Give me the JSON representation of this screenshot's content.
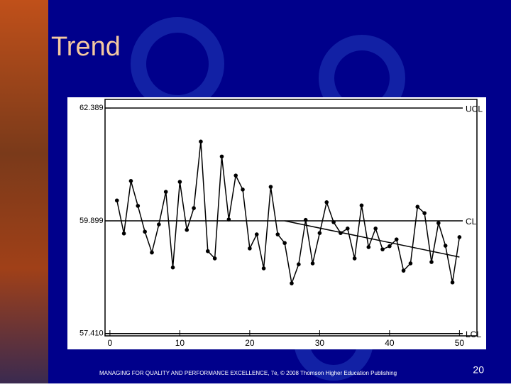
{
  "slide": {
    "title": "Trend",
    "footer": "MANAGING FOR QUALITY AND PERFORMANCE EXCELLENCE, 7e, © 2008 Thomson Higher Education Publishing",
    "page": "20"
  },
  "chart_data": {
    "type": "line",
    "x": [
      1,
      2,
      3,
      4,
      5,
      6,
      7,
      8,
      9,
      10,
      11,
      12,
      13,
      14,
      15,
      16,
      17,
      18,
      19,
      20,
      21,
      22,
      23,
      24,
      25,
      26,
      27,
      28,
      29,
      30,
      31,
      32,
      33,
      34,
      35,
      36,
      37,
      38,
      39,
      40,
      41,
      42,
      43,
      44,
      45,
      46,
      47,
      48,
      49,
      50
    ],
    "values": [
      60.35,
      59.62,
      60.78,
      60.23,
      59.66,
      59.2,
      59.82,
      60.54,
      58.87,
      60.76,
      59.7,
      60.18,
      61.65,
      59.23,
      59.07,
      61.32,
      59.93,
      60.9,
      60.59,
      59.29,
      59.6,
      58.85,
      60.65,
      59.6,
      59.41,
      58.52,
      58.94,
      59.92,
      58.96,
      59.63,
      60.31,
      59.87,
      59.63,
      59.73,
      59.07,
      60.24,
      59.32,
      59.73,
      59.27,
      59.34,
      59.49,
      58.8,
      58.96,
      60.21,
      60.07,
      58.99,
      59.85,
      59.35,
      58.54,
      59.54
    ],
    "color": "#000000",
    "trend": {
      "x": [
        25,
        50
      ],
      "values": [
        59.9,
        59.1
      ]
    },
    "limits": [
      {
        "label": "UCL",
        "value": 62.389
      },
      {
        "label": "CL",
        "value": 59.899
      },
      {
        "label": "LCL",
        "value": 57.41
      }
    ],
    "xlim": [
      -0.7,
      52.5
    ],
    "ylim": [
      57.36,
      62.58
    ],
    "xticks": [
      0,
      10,
      20,
      30,
      40,
      50
    ],
    "yticks": [
      {
        "value": 57.41,
        "label": "57.410"
      },
      59.899,
      62.389
    ]
  }
}
